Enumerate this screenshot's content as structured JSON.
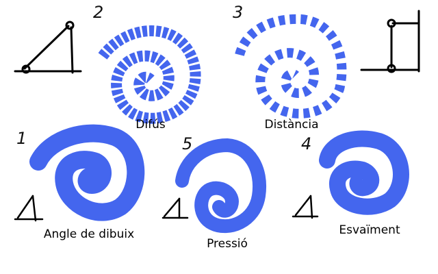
{
  "colors": {
    "stroke": "#4466ee",
    "ink": "#000000"
  },
  "numbers": [
    "2",
    "3",
    "1",
    "5",
    "4"
  ],
  "captions": [
    "Difús",
    "Distància",
    "Angle de dibuix",
    "Pressió",
    "Esvaïment"
  ]
}
